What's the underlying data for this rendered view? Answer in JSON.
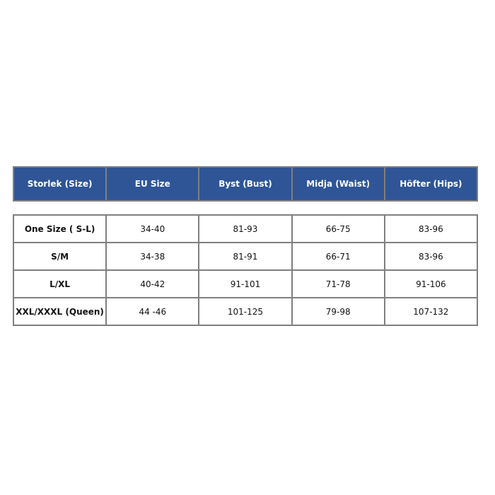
{
  "header": [
    "Storlek (Size)",
    "EU Size",
    "Byst (Bust)",
    "Midja (Waist)",
    "Höfter (Hips)"
  ],
  "rows": [
    [
      "One Size  ( S-L)",
      "34-40",
      "81-93",
      "66-75",
      "83-96"
    ],
    [
      "S/M",
      "34-38",
      "81-91",
      "66-71",
      "83-96"
    ],
    [
      "L/XL",
      "40-42",
      "91-101",
      "71-78",
      "91-106"
    ],
    [
      "XXL/XXXL (Queen)",
      "44 -46",
      "101-125",
      "79-98",
      "107-132"
    ]
  ],
  "colors": {
    "header_bg": "#2f5597",
    "border": "#7f7f7f"
  }
}
